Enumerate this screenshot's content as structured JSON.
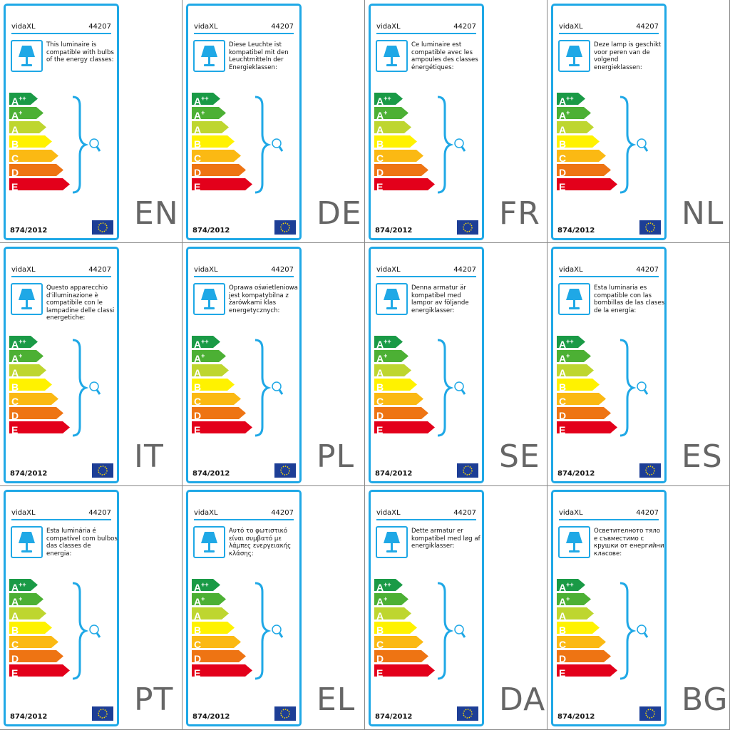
{
  "brand": "vidaXL",
  "code": "44207",
  "regulation": "874/2012",
  "energy_classes": [
    {
      "letter": "A",
      "sup": "++",
      "color": "#1a9a46"
    },
    {
      "letter": "A",
      "sup": "+",
      "color": "#4cb034"
    },
    {
      "letter": "A",
      "sup": "",
      "color": "#bed62f"
    },
    {
      "letter": "B",
      "sup": "",
      "color": "#fff200"
    },
    {
      "letter": "C",
      "sup": "",
      "color": "#fbb913"
    },
    {
      "letter": "D",
      "sup": "",
      "color": "#ee7413"
    },
    {
      "letter": "E",
      "sup": "",
      "color": "#e3001b"
    }
  ],
  "accent": "#1fa8e6",
  "labels": [
    {
      "lang": "EN",
      "text": "This luminaire is compatible with bulbs of the energy classes:"
    },
    {
      "lang": "DE",
      "text": "Diese Leuchte ist kompatibel mit den Leuchtmitteln der Energieklassen:"
    },
    {
      "lang": "FR",
      "text": "Ce luminaire est compatible avec les ampoules des classes énergétiques:"
    },
    {
      "lang": "NL",
      "text": "Deze lamp is geschikt voor peren van de volgend energieklassen:"
    },
    {
      "lang": "IT",
      "text": "Questo apparecchio d'illuminazione è compatibile con le lampadine delle classi energetiche:"
    },
    {
      "lang": "PL",
      "text": "Oprawa oświetleniowa jest kompatybilna z żarówkami klas energetycznych:"
    },
    {
      "lang": "SE",
      "text": "Denna armatur är kompatibel med lampor av följande energiklasser:"
    },
    {
      "lang": "ES",
      "text": "Esta luminaria es compatible con las bombillas de las clases de la energía:"
    },
    {
      "lang": "PT",
      "text": "Esta luminária é compatível com bulbos das classes de energia:"
    },
    {
      "lang": "EL",
      "text": "Αυτό το φωτιστικό είναι συμβατό με λάμπες ενεργειακής κλάσης:"
    },
    {
      "lang": "DA",
      "text": "Dette armatur er kompatibel med løg af energiklasser:"
    },
    {
      "lang": "BG",
      "text": "Осветителното тяло е съвместимо с крушки от енергийни класове:"
    }
  ]
}
